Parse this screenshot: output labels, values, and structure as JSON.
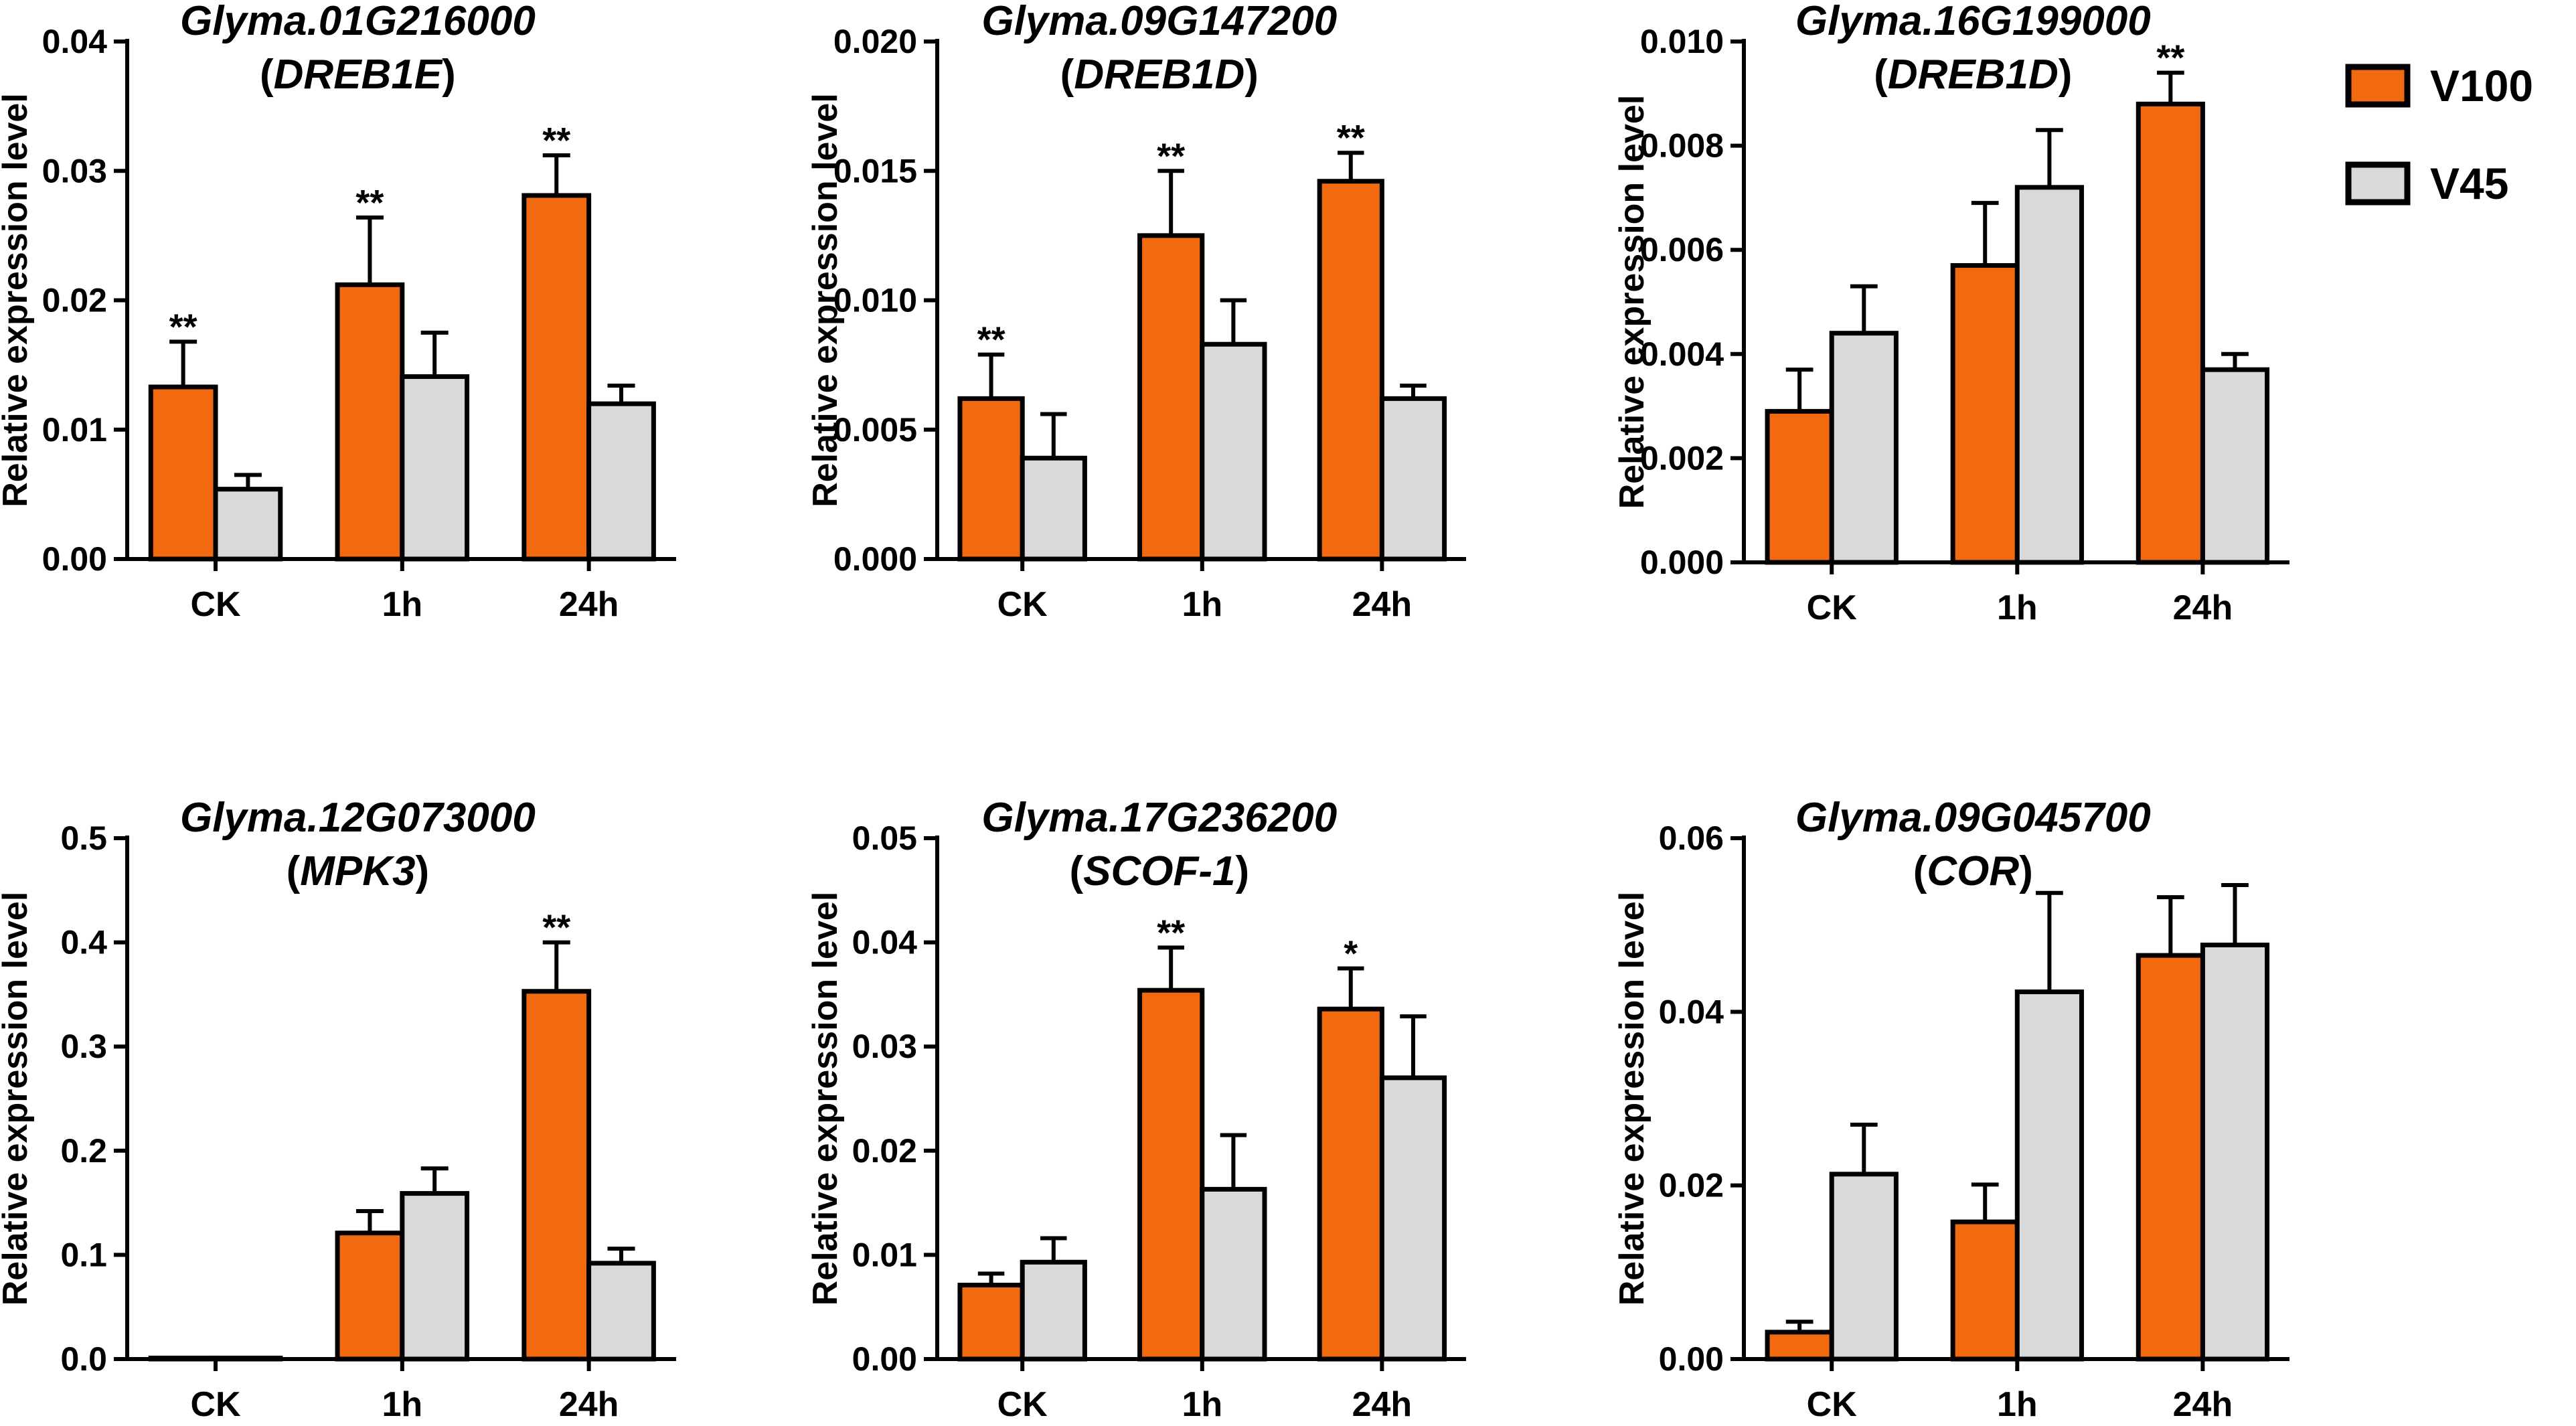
{
  "legend": {
    "entries": [
      {
        "name": "V100",
        "color": "#f26a10"
      },
      {
        "name": "V45",
        "color": "#d9d9d9"
      }
    ]
  },
  "colors": {
    "v100": "#f26a10",
    "v45": "#d9d9d9",
    "axis": "#000000"
  },
  "chart_data": [
    {
      "type": "bar",
      "title": "Glyma.01G216000",
      "subtitle": "(DREB1E)",
      "ylabel": "Relative expression level",
      "ylim": [
        0,
        0.04
      ],
      "yticks": [
        "0.00",
        "0.01",
        "0.02",
        "0.03",
        "0.04"
      ],
      "categories": [
        "CK",
        "1h",
        "24h"
      ],
      "series": [
        {
          "name": "V100",
          "values": [
            0.0133,
            0.0212,
            0.0281
          ],
          "errors": [
            0.0035,
            0.0052,
            0.0031
          ],
          "sig": [
            "**",
            "**",
            "**"
          ]
        },
        {
          "name": "V45",
          "values": [
            0.0054,
            0.0141,
            0.012
          ],
          "errors": [
            0.0011,
            0.0034,
            0.0014
          ],
          "sig": [
            "",
            "",
            ""
          ]
        }
      ]
    },
    {
      "type": "bar",
      "title": "Glyma.09G147200",
      "subtitle": "(DREB1D)",
      "ylabel": "Relative expression level",
      "ylim": [
        0,
        0.02
      ],
      "yticks": [
        "0.000",
        "0.005",
        "0.010",
        "0.015",
        "0.020"
      ],
      "categories": [
        "CK",
        "1h",
        "24h"
      ],
      "series": [
        {
          "name": "V100",
          "values": [
            0.0062,
            0.0125,
            0.0146
          ],
          "errors": [
            0.0017,
            0.0025,
            0.0011
          ],
          "sig": [
            "**",
            "**",
            "**"
          ]
        },
        {
          "name": "V45",
          "values": [
            0.0039,
            0.0083,
            0.0062
          ],
          "errors": [
            0.0017,
            0.0017,
            0.0005
          ],
          "sig": [
            "",
            "",
            ""
          ]
        }
      ]
    },
    {
      "type": "bar",
      "title": "Glyma.16G199000",
      "subtitle": "(DREB1D)",
      "ylabel": "Relative expression level",
      "ylim": [
        0,
        0.01
      ],
      "yticks": [
        "0.000",
        "0.002",
        "0.004",
        "0.006",
        "0.008",
        "0.010"
      ],
      "categories": [
        "CK",
        "1h",
        "24h"
      ],
      "series": [
        {
          "name": "V100",
          "values": [
            0.0029,
            0.0057,
            0.0088
          ],
          "errors": [
            0.0008,
            0.0012,
            0.0006
          ],
          "sig": [
            "",
            "",
            "**"
          ]
        },
        {
          "name": "V45",
          "values": [
            0.0044,
            0.0072,
            0.0037
          ],
          "errors": [
            0.0009,
            0.0011,
            0.0003
          ],
          "sig": [
            "",
            "",
            ""
          ]
        }
      ]
    },
    {
      "type": "bar",
      "title": "Glyma.12G073000",
      "subtitle": "(MPK3)",
      "ylabel": "Relative expression level",
      "ylim": [
        0,
        0.5
      ],
      "yticks": [
        "0.0",
        "0.1",
        "0.2",
        "0.3",
        "0.4",
        "0.5"
      ],
      "categories": [
        "CK",
        "1h",
        "24h"
      ],
      "series": [
        {
          "name": "V100",
          "values": [
            0.001,
            0.121,
            0.353
          ],
          "errors": [
            0.0,
            0.021,
            0.047
          ],
          "sig": [
            "",
            "",
            "**"
          ]
        },
        {
          "name": "V45",
          "values": [
            0.001,
            0.159,
            0.092
          ],
          "errors": [
            0.0,
            0.024,
            0.014
          ],
          "sig": [
            "",
            "",
            ""
          ]
        }
      ]
    },
    {
      "type": "bar",
      "title": "Glyma.17G236200",
      "subtitle": "(SCOF-1)",
      "ylabel": "Relative expression level",
      "ylim": [
        0,
        0.05
      ],
      "yticks": [
        "0.00",
        "0.01",
        "0.02",
        "0.03",
        "0.04",
        "0.05"
      ],
      "categories": [
        "CK",
        "1h",
        "24h"
      ],
      "series": [
        {
          "name": "V100",
          "values": [
            0.0071,
            0.0354,
            0.0336
          ],
          "errors": [
            0.0011,
            0.0041,
            0.0039
          ],
          "sig": [
            "",
            "**",
            "*"
          ]
        },
        {
          "name": "V45",
          "values": [
            0.0093,
            0.0163,
            0.027
          ],
          "errors": [
            0.0023,
            0.0052,
            0.0059
          ],
          "sig": [
            "",
            "",
            ""
          ]
        }
      ]
    },
    {
      "type": "bar",
      "title": "Glyma.09G045700",
      "subtitle": "(COR)",
      "ylabel": "Relative expression level",
      "ylim": [
        0,
        0.06
      ],
      "yticks": [
        "0.00",
        "0.02",
        "0.04",
        "0.06"
      ],
      "categories": [
        "CK",
        "1h",
        "24h"
      ],
      "series": [
        {
          "name": "V100",
          "values": [
            0.0031,
            0.0158,
            0.0465
          ],
          "errors": [
            0.0012,
            0.0043,
            0.0067
          ],
          "sig": [
            "",
            "",
            ""
          ]
        },
        {
          "name": "V45",
          "values": [
            0.0213,
            0.0423,
            0.0477
          ],
          "errors": [
            0.0057,
            0.0114,
            0.0069
          ],
          "sig": [
            "",
            "",
            ""
          ]
        }
      ]
    }
  ]
}
